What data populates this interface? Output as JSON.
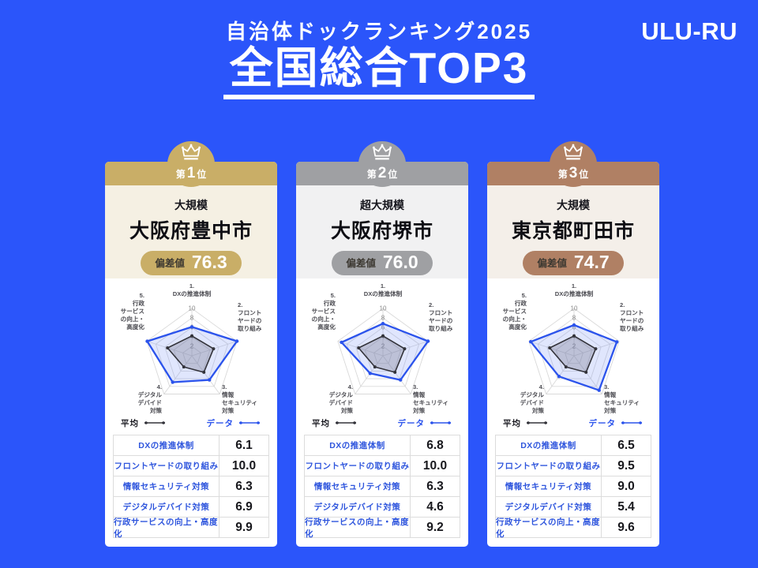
{
  "colors": {
    "background": "#2B55FA",
    "data_line": "#2B53EC",
    "average_line": "#33333A",
    "table_label_blue": "#2E55DD"
  },
  "header": {
    "subtitle": "自治体ドックランキング2025",
    "title": "全国総合TOP3",
    "logo": "ULU-RU"
  },
  "legend": {
    "average": "平均",
    "data": "データ"
  },
  "radar": {
    "max": 10,
    "ticks": [
      2,
      4,
      6,
      8,
      10
    ],
    "axes": [
      {
        "num": "1.",
        "lines": [
          "DXの推進体制"
        ]
      },
      {
        "num": "2.",
        "lines": [
          "フロント",
          "ヤードの",
          "取り組み"
        ]
      },
      {
        "num": "3.",
        "lines": [
          "情報",
          "セキュリティ",
          "対策"
        ]
      },
      {
        "num": "4.",
        "lines": [
          "デジタル",
          "デバイド",
          "対策"
        ]
      },
      {
        "num": "5.",
        "lines": [
          "行政",
          "サービス",
          "の向上・",
          "高度化"
        ]
      }
    ],
    "average_values": [
      4.2,
      4.8,
      4.3,
      2.9,
      5.4
    ]
  },
  "cards": [
    {
      "rank_prefix": "第",
      "rank_number": "1",
      "rank_suffix": "位",
      "category": "大規模",
      "city": "大阪府豊中市",
      "score_label": "偏差値",
      "score": "76.3",
      "band_color": "#C9AE67",
      "body_color": "#F5F0E3",
      "values": [
        6.1,
        10.0,
        6.3,
        6.9,
        9.9
      ],
      "rows": [
        {
          "label": "DXの推進体制",
          "value": "6.1"
        },
        {
          "label": "フロントヤードの取り組み",
          "value": "10.0"
        },
        {
          "label": "情報セキュリティ対策",
          "value": "6.3"
        },
        {
          "label": "デジタルデバイド対策",
          "value": "6.9"
        },
        {
          "label": "行政サービスの向上・高度化",
          "value": "9.9"
        }
      ]
    },
    {
      "rank_prefix": "第",
      "rank_number": "2",
      "rank_suffix": "位",
      "category": "超大規模",
      "city": "大阪府堺市",
      "score_label": "偏差値",
      "score": "76.0",
      "band_color": "#9FA0A3",
      "body_color": "#F1F1F2",
      "values": [
        6.8,
        10.0,
        6.3,
        4.6,
        9.2
      ],
      "rows": [
        {
          "label": "DXの推進体制",
          "value": "6.8"
        },
        {
          "label": "フロントヤードの取り組み",
          "value": "10.0"
        },
        {
          "label": "情報セキュリティ対策",
          "value": "6.3"
        },
        {
          "label": "デジタルデバイド対策",
          "value": "4.6"
        },
        {
          "label": "行政サービスの向上・高度化",
          "value": "9.2"
        }
      ]
    },
    {
      "rank_prefix": "第",
      "rank_number": "3",
      "rank_suffix": "位",
      "category": "大規模",
      "city": "東京都町田市",
      "score_label": "偏差値",
      "score": "74.7",
      "band_color": "#B08064",
      "body_color": "#F4EFE9",
      "values": [
        6.5,
        9.5,
        9.0,
        5.4,
        9.6
      ],
      "rows": [
        {
          "label": "DXの推進体制",
          "value": "6.5"
        },
        {
          "label": "フロントヤードの取り組み",
          "value": "9.5"
        },
        {
          "label": "情報セキュリティ対策",
          "value": "9.0"
        },
        {
          "label": "デジタルデバイド対策",
          "value": "5.4"
        },
        {
          "label": "行政サービスの向上・高度化",
          "value": "9.6"
        }
      ]
    }
  ],
  "chart_data": [
    {
      "type": "radar",
      "title": "第1位 大規模 大阪府豊中市 偏差値76.3",
      "categories": [
        "DXの推進体制",
        "フロントヤードの取り組み",
        "情報セキュリティ対策",
        "デジタルデバイド対策",
        "行政サービスの向上・高度化"
      ],
      "series": [
        {
          "name": "データ",
          "values": [
            6.1,
            10.0,
            6.3,
            6.9,
            9.9
          ]
        },
        {
          "name": "平均",
          "values": [
            4.2,
            4.8,
            4.3,
            2.9,
            5.4
          ]
        }
      ],
      "rlim": [
        0,
        10
      ],
      "ticks": [
        2,
        4,
        6,
        8,
        10
      ],
      "legend_position": "bottom",
      "grid": true
    },
    {
      "type": "radar",
      "title": "第2位 超大規模 大阪府堺市 偏差値76.0",
      "categories": [
        "DXの推進体制",
        "フロントヤードの取り組み",
        "情報セキュリティ対策",
        "デジタルデバイド対策",
        "行政サービスの向上・高度化"
      ],
      "series": [
        {
          "name": "データ",
          "values": [
            6.8,
            10.0,
            6.3,
            4.6,
            9.2
          ]
        },
        {
          "name": "平均",
          "values": [
            4.2,
            4.8,
            4.3,
            2.9,
            5.4
          ]
        }
      ],
      "rlim": [
        0,
        10
      ],
      "ticks": [
        2,
        4,
        6,
        8,
        10
      ],
      "legend_position": "bottom",
      "grid": true
    },
    {
      "type": "radar",
      "title": "第3位 大規模 東京都町田市 偏差値74.7",
      "categories": [
        "DXの推進体制",
        "フロントヤードの取り組み",
        "情報セキュリティ対策",
        "デジタルデバイド対策",
        "行政サービスの向上・高度化"
      ],
      "series": [
        {
          "name": "データ",
          "values": [
            6.5,
            9.5,
            9.0,
            5.4,
            9.6
          ]
        },
        {
          "name": "平均",
          "values": [
            4.2,
            4.8,
            4.3,
            2.9,
            5.4
          ]
        }
      ],
      "rlim": [
        0,
        10
      ],
      "ticks": [
        2,
        4,
        6,
        8,
        10
      ],
      "legend_position": "bottom",
      "grid": true
    }
  ]
}
